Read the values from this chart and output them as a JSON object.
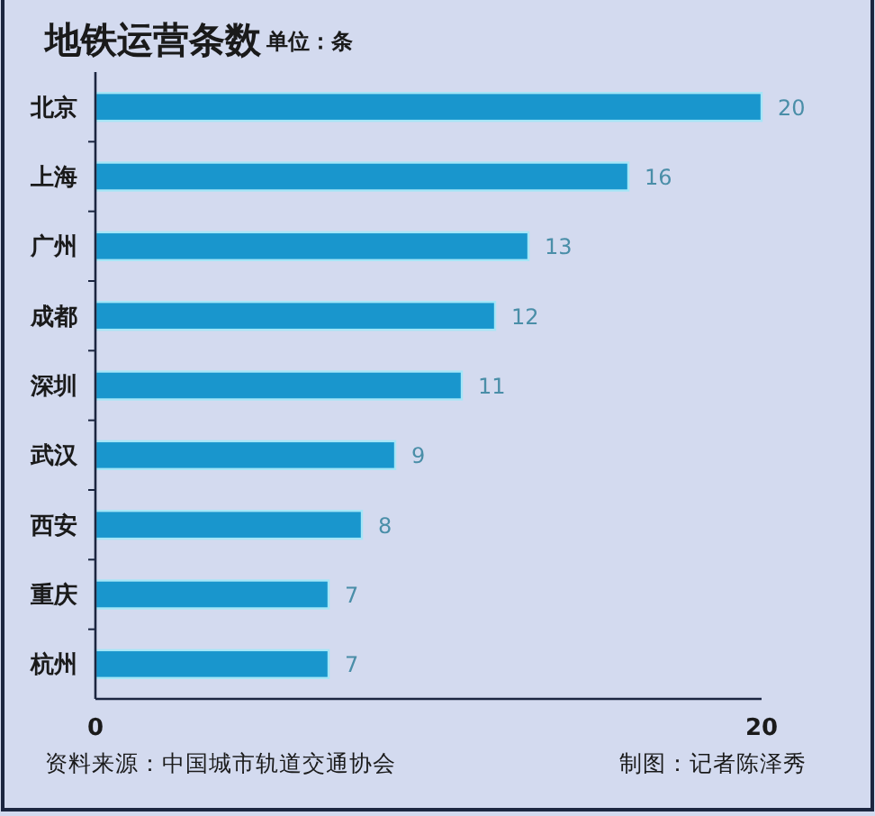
{
  "chart_data": {
    "type": "bar",
    "orientation": "horizontal",
    "title": "地铁运营条数",
    "subtitle": "单位：条",
    "categories": [
      "北京",
      "上海",
      "广州",
      "成都",
      "深圳",
      "武汉",
      "西安",
      "重庆",
      "杭州"
    ],
    "values": [
      20,
      16,
      13,
      12,
      11,
      9,
      8,
      7,
      7
    ],
    "color": "#1996cd",
    "xlim": [
      0,
      20
    ],
    "xticks": [
      0,
      20
    ],
    "data_labels": true,
    "annotations": [
      "资料来源：中国城市轨道交通协会",
      "制图：记者陈泽秀"
    ]
  }
}
